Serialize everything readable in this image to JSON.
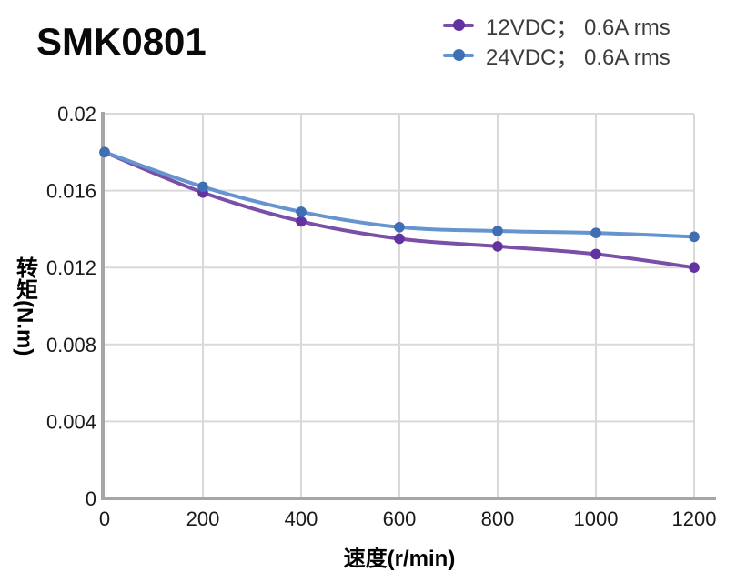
{
  "title": "SMK0801",
  "chart_data": {
    "type": "line",
    "x": [
      0,
      200,
      400,
      600,
      800,
      1000,
      1200
    ],
    "series": [
      {
        "name": "12VDC；  0.6A rms",
        "line_color": "#7A4FA8",
        "marker_color": "#6233A0",
        "values": [
          0.018,
          0.0159,
          0.0144,
          0.0135,
          0.0131,
          0.0127,
          0.012
        ]
      },
      {
        "name": "24VDC；  0.6A rms",
        "line_color": "#6594CE",
        "marker_color": "#3E6FB4",
        "values": [
          0.018,
          0.0162,
          0.0149,
          0.0141,
          0.0139,
          0.0138,
          0.0136
        ]
      }
    ],
    "xlabel": "速度(r/min)",
    "ylabel": "转矩(N.m)",
    "xlim": [
      0,
      1200
    ],
    "ylim": [
      0,
      0.02
    ],
    "x_ticks": [
      0,
      200,
      400,
      600,
      800,
      1000,
      1200
    ],
    "x_tick_labels": [
      "0",
      "200",
      "400",
      "600",
      "800",
      "1000",
      "1200"
    ],
    "y_ticks": [
      0,
      0.004,
      0.008,
      0.012,
      0.016,
      0.02
    ],
    "y_tick_labels": [
      "0",
      "0.004",
      "0.008",
      "0.012",
      "0.016",
      "0.02"
    ],
    "grid": true,
    "legend_position": "top-right"
  },
  "colors": {
    "axis": "#a6a6a6",
    "grid": "#d9d9d9",
    "tick_text": "#1a1a1a",
    "background": "#ffffff"
  }
}
